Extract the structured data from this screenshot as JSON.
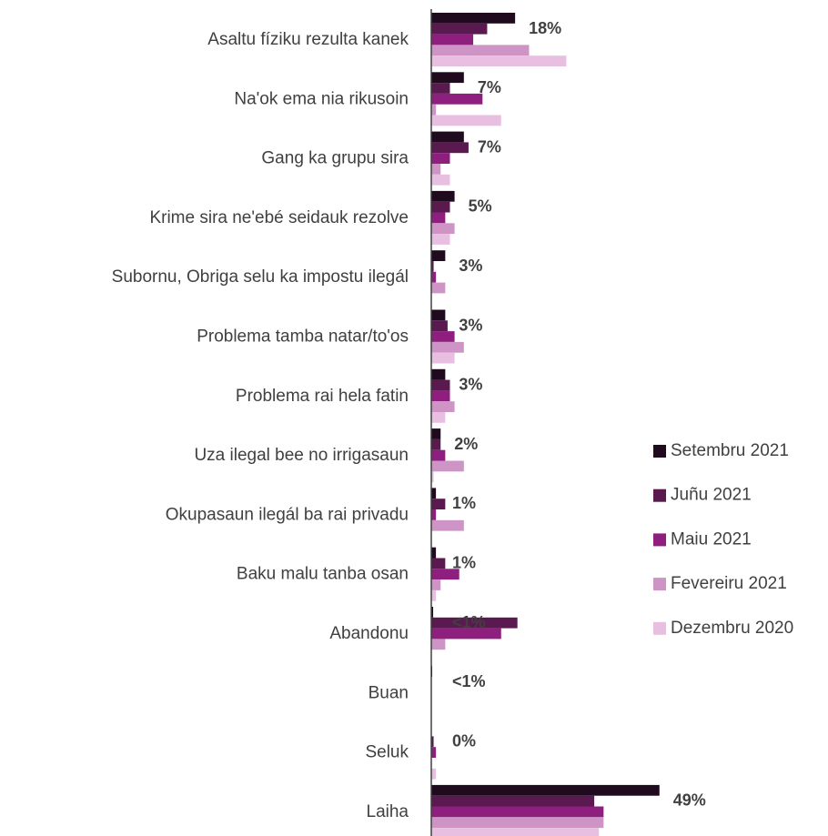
{
  "chart_data": {
    "type": "bar",
    "orientation": "horizontal",
    "categories": [
      "Asaltu fíziku rezulta kanek",
      "Na'ok ema nia rikusoin",
      "Gang ka grupu sira",
      "Krime sira ne'ebé seidauk rezolve",
      "Subornu, Obriga selu ka impostu ilegál",
      "Problema tamba natar/to'os",
      "Problema rai hela fatin",
      "Uza ilegal bee no irrigasaun",
      "Okupasaun ilegál ba rai privadu",
      "Baku malu tanba osan",
      "Abandonu",
      "Buan",
      "Seluk",
      "Laiha"
    ],
    "series": [
      {
        "name": "Setembru 2021",
        "color": "#1f0a1e",
        "values": [
          18,
          7,
          7,
          5,
          3,
          3,
          3,
          2,
          1,
          1,
          0.4,
          0.2,
          0,
          49
        ],
        "value_labels": [
          "18%",
          "7%",
          "7%",
          "5%",
          "3%",
          "3%",
          "3%",
          "2%",
          "1%",
          "1%",
          "<1%",
          "<1%",
          "0%",
          "49%"
        ]
      },
      {
        "name": "Juñu 2021",
        "color": "#5a1a50",
        "values": [
          12,
          4,
          8,
          4,
          0.5,
          3.5,
          4,
          2,
          3,
          3,
          18.5,
          0,
          0.5,
          35
        ]
      },
      {
        "name": "Maiu 2021",
        "color": "#8e1f7e",
        "values": [
          9,
          11,
          4,
          3,
          1,
          5,
          4,
          3,
          1,
          6,
          15,
          0,
          1,
          37
        ]
      },
      {
        "name": "Fevereiru 2021",
        "color": "#cf94c6",
        "values": [
          21,
          1,
          2,
          5,
          3,
          7,
          5,
          7,
          7,
          2,
          3,
          0,
          0,
          37
        ]
      },
      {
        "name": "Dezembru 2020",
        "color": "#e9bfe1",
        "values": [
          29,
          15,
          4,
          4,
          0,
          5,
          3,
          0.5,
          0,
          1,
          0,
          0,
          1,
          36
        ]
      }
    ],
    "xlim": [
      0,
      85
    ],
    "legend": "right"
  }
}
